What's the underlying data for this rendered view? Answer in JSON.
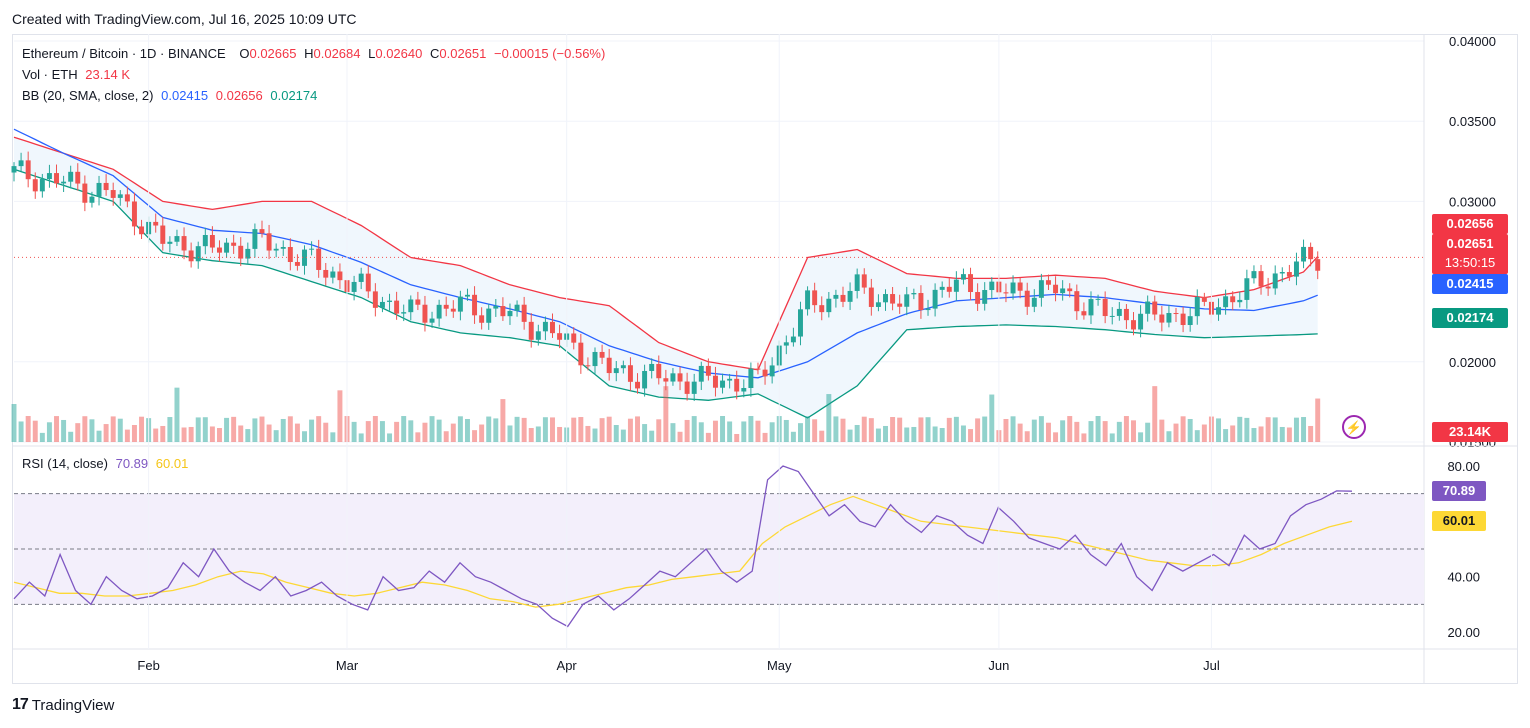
{
  "header": {
    "created": "Created with TradingView.com, Jul 16, 2025 10:09 UTC"
  },
  "legend": {
    "symbol": "Ethereum / Bitcoin · 1D · BINANCE",
    "o_label": "O",
    "o": "0.02665",
    "h_label": "H",
    "h": "0.02684",
    "l_label": "L",
    "l": "0.02640",
    "c_label": "C",
    "c": "0.02651",
    "change": "−0.00015 (−0.56%)",
    "vol_label": "Vol · ETH",
    "vol": "23.14 K",
    "bb_label": "BB (20, SMA, close, 2)",
    "bb_basis": "0.02415",
    "bb_upper": "0.02656",
    "bb_lower": "0.02174",
    "rsi_label": "RSI (14, close)",
    "rsi": "70.89",
    "rsi_ma": "60.01"
  },
  "price_axis": [
    "0.04000",
    "0.03500",
    "0.03000",
    "0.02000",
    "0.01500"
  ],
  "rsi_axis": [
    "80.00",
    "40.00",
    "20.00"
  ],
  "time_axis": [
    "Feb",
    "Mar",
    "Apr",
    "May",
    "Jun",
    "Jul"
  ],
  "tags": {
    "upper": "0.02656",
    "price": "0.02651",
    "countdown": "13:50:15",
    "basis": "0.02415",
    "lower": "0.02174",
    "volume": "23.14K",
    "rsi": "70.89",
    "rsi_ma": "60.01"
  },
  "colors": {
    "up": "#26a69a",
    "down": "#ef5350",
    "upper_band": "#f23645",
    "basis": "#2962ff",
    "lower_band": "#089981",
    "band_fill": "#eef6fd",
    "rsi_line": "#7e57c2",
    "rsi_ma": "#fdd835",
    "rsi_bg": "#f3effb"
  },
  "footer": {
    "brand": "TradingView",
    "logo": "17"
  },
  "chart_data": {
    "type": "candlestick",
    "symbol": "ETHBTC",
    "timeframe": "1D",
    "x_range": [
      "2025-01-13",
      "2025-07-16"
    ],
    "ylim": [
      0.015,
      0.04
    ],
    "close_series": {
      "dates": [
        "2025-01-13",
        "2025-01-20",
        "2025-01-27",
        "2025-02-03",
        "2025-02-10",
        "2025-02-17",
        "2025-02-24",
        "2025-03-03",
        "2025-03-10",
        "2025-03-17",
        "2025-03-24",
        "2025-03-31",
        "2025-04-07",
        "2025-04-14",
        "2025-04-21",
        "2025-04-28",
        "2025-05-05",
        "2025-05-12",
        "2025-05-19",
        "2025-05-26",
        "2025-06-02",
        "2025-06-09",
        "2025-06-16",
        "2025-06-23",
        "2025-06-30",
        "2025-07-07",
        "2025-07-14",
        "2025-07-16"
      ],
      "values": [
        0.0318,
        0.0312,
        0.0304,
        0.0275,
        0.027,
        0.0275,
        0.0262,
        0.0245,
        0.023,
        0.0235,
        0.023,
        0.0215,
        0.0195,
        0.019,
        0.0188,
        0.0188,
        0.0235,
        0.0245,
        0.0235,
        0.0248,
        0.0243,
        0.0245,
        0.023,
        0.0228,
        0.0232,
        0.0248,
        0.0262,
        0.02651
      ]
    },
    "bollinger": {
      "upper": [
        0.034,
        0.033,
        0.032,
        0.03,
        0.0295,
        0.03,
        0.03,
        0.0285,
        0.0265,
        0.026,
        0.0248,
        0.024,
        0.0235,
        0.0212,
        0.02,
        0.0195,
        0.0265,
        0.027,
        0.0255,
        0.0252,
        0.0252,
        0.0254,
        0.0252,
        0.0244,
        0.024,
        0.0245,
        0.0256,
        0.02656
      ],
      "basis": [
        0.0345,
        0.033,
        0.0316,
        0.029,
        0.0282,
        0.028,
        0.0273,
        0.0262,
        0.0248,
        0.024,
        0.0233,
        0.0225,
        0.021,
        0.02,
        0.0193,
        0.019,
        0.02,
        0.0218,
        0.023,
        0.0238,
        0.024,
        0.0242,
        0.024,
        0.0236,
        0.0233,
        0.0232,
        0.0238,
        0.02415
      ],
      "lower": [
        0.032,
        0.031,
        0.03,
        0.0268,
        0.0263,
        0.026,
        0.025,
        0.024,
        0.0225,
        0.0218,
        0.0215,
        0.021,
        0.0185,
        0.0178,
        0.0176,
        0.018,
        0.0165,
        0.0185,
        0.022,
        0.0222,
        0.0223,
        0.0222,
        0.022,
        0.0217,
        0.0215,
        0.0216,
        0.0217,
        0.02174
      ]
    },
    "volume": {
      "unit": "ETH",
      "last": 23140
    },
    "rsi": {
      "period": 14,
      "levels": [
        70,
        50,
        30
      ],
      "ylim": [
        15,
        85
      ],
      "values": [
        32,
        38,
        33,
        48,
        35,
        30,
        40,
        35,
        32,
        33,
        36,
        45,
        40,
        50,
        42,
        38,
        35,
        40,
        33,
        35,
        38,
        33,
        30,
        28,
        40,
        35,
        36,
        42,
        38,
        45,
        40,
        38,
        35,
        32,
        30,
        25,
        22,
        30,
        33,
        28,
        32,
        37,
        42,
        40,
        45,
        50,
        42,
        38,
        42,
        75,
        80,
        78,
        70,
        62,
        66,
        60,
        58,
        66,
        60,
        56,
        62,
        60,
        55,
        52,
        65,
        60,
        54,
        52,
        50,
        55,
        48,
        44,
        52,
        40,
        35,
        45,
        42,
        45,
        48,
        44,
        55,
        50,
        52,
        62,
        66,
        68,
        71,
        70.89
      ],
      "ma": [
        38,
        36,
        34,
        34,
        33,
        33,
        34,
        35,
        37,
        40,
        42,
        41,
        38,
        36,
        34,
        33,
        34,
        36,
        38,
        37,
        35,
        32,
        31,
        29,
        30,
        32,
        34,
        36,
        37,
        39,
        40,
        41,
        42,
        52,
        58,
        62,
        66,
        69,
        66,
        63,
        60,
        59,
        58,
        57,
        56,
        55,
        54,
        52,
        50,
        48,
        46,
        45,
        44,
        44,
        45,
        48,
        52,
        55,
        58,
        60.01
      ]
    }
  }
}
